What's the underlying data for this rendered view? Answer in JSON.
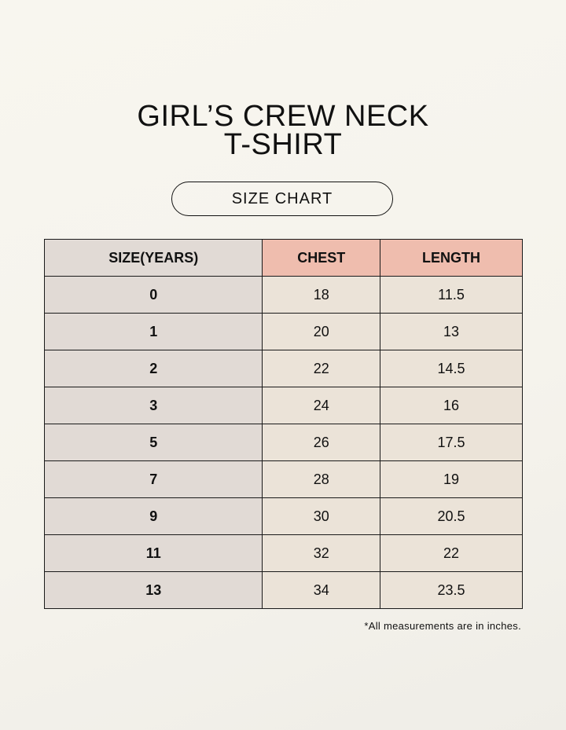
{
  "title_line1": "GIRL’S CREW NECK",
  "title_line2": "T-SHIRT",
  "subtitle": "SIZE CHART",
  "colors": {
    "header_accent": "#efbdae",
    "size_column": "#e1dad5",
    "cells": "#ebe3d8"
  },
  "table": {
    "headers": [
      "SIZE(YEARS)",
      "CHEST",
      "LENGTH"
    ],
    "rows": [
      [
        "0",
        "18",
        "11.5"
      ],
      [
        "1",
        "20",
        "13"
      ],
      [
        "2",
        "22",
        "14.5"
      ],
      [
        "3",
        "24",
        "16"
      ],
      [
        "5",
        "26",
        "17.5"
      ],
      [
        "7",
        "28",
        "19"
      ],
      [
        "9",
        "30",
        "20.5"
      ],
      [
        "11",
        "32",
        "22"
      ],
      [
        "13",
        "34",
        "23.5"
      ]
    ]
  },
  "footnote": "*All measurements are in inches."
}
